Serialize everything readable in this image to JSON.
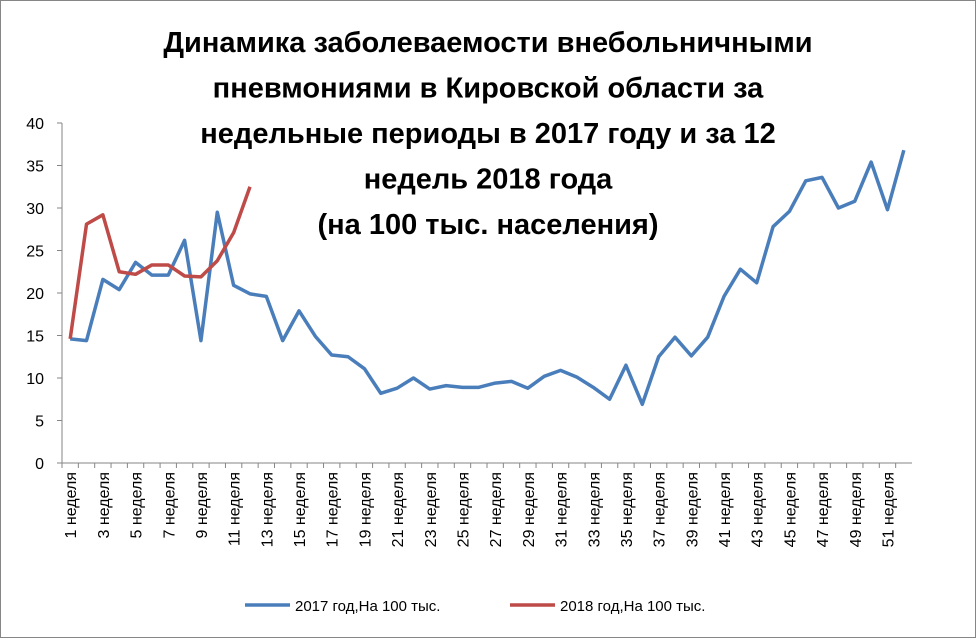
{
  "chart_data": {
    "type": "line",
    "title": [
      "Динамика заболеваемости внебольничными",
      "пневмониями в Кировской области за",
      "недельные периоды в 2017 году и за 12",
      "недель 2018 года",
      "(на 100 тыс. населения)"
    ],
    "categories": [
      "1 неделя",
      null,
      "3 неделя",
      null,
      "5 неделя",
      null,
      "7 неделя",
      null,
      "9 неделя",
      null,
      "11 неделя",
      null,
      "13 неделя",
      null,
      "15 неделя",
      null,
      "17 неделя",
      null,
      "19 неделя",
      null,
      "21 неделя",
      null,
      "23 неделя",
      null,
      "25 неделя",
      null,
      "27 неделя",
      null,
      "29 неделя",
      null,
      "31 неделя",
      null,
      "33 неделя",
      null,
      "35 неделя",
      null,
      "37 неделя",
      null,
      "39 неделя",
      null,
      "41 неделя",
      null,
      "43 неделя",
      null,
      "45 неделя",
      null,
      "47 неделя",
      null,
      "49 неделя",
      null,
      "51 неделя",
      null
    ],
    "series": [
      {
        "name": "2017 год,На 100 тыс.",
        "color": "#4a7ebb",
        "values": [
          14.6,
          14.4,
          21.6,
          20.4,
          23.6,
          22.1,
          22.1,
          26.2,
          14.4,
          29.5,
          20.9,
          19.9,
          19.6,
          14.4,
          17.9,
          14.9,
          12.7,
          12.5,
          11.1,
          8.2,
          8.8,
          10.0,
          8.7,
          9.1,
          8.9,
          8.9,
          9.4,
          9.6,
          8.8,
          10.2,
          10.9,
          10.1,
          8.9,
          7.5,
          11.5,
          6.9,
          12.5,
          14.8,
          12.6,
          14.8,
          19.6,
          22.8,
          21.2,
          27.8,
          29.6,
          33.2,
          33.6,
          30.0,
          30.8,
          35.4,
          29.8,
          36.8
        ]
      },
      {
        "name": "2018 год,На 100 тыс.",
        "color": "#be4b48",
        "values": [
          14.6,
          28.1,
          29.2,
          22.5,
          22.2,
          23.3,
          23.3,
          22.0,
          21.9,
          23.8,
          27.1,
          32.5,
          null,
          null,
          null,
          null,
          null,
          null,
          null,
          null,
          null,
          null,
          null,
          null,
          null,
          null,
          null,
          null,
          null,
          null,
          null,
          null,
          null,
          null,
          null,
          null,
          null,
          null,
          null,
          null,
          null,
          null,
          null,
          null,
          null,
          null,
          null,
          null,
          null,
          null,
          null,
          null
        ]
      }
    ],
    "ylim": [
      0,
      40
    ],
    "yticks": [
      0,
      5,
      10,
      15,
      20,
      25,
      30,
      35,
      40
    ],
    "grid": false,
    "legend": "bottom"
  }
}
